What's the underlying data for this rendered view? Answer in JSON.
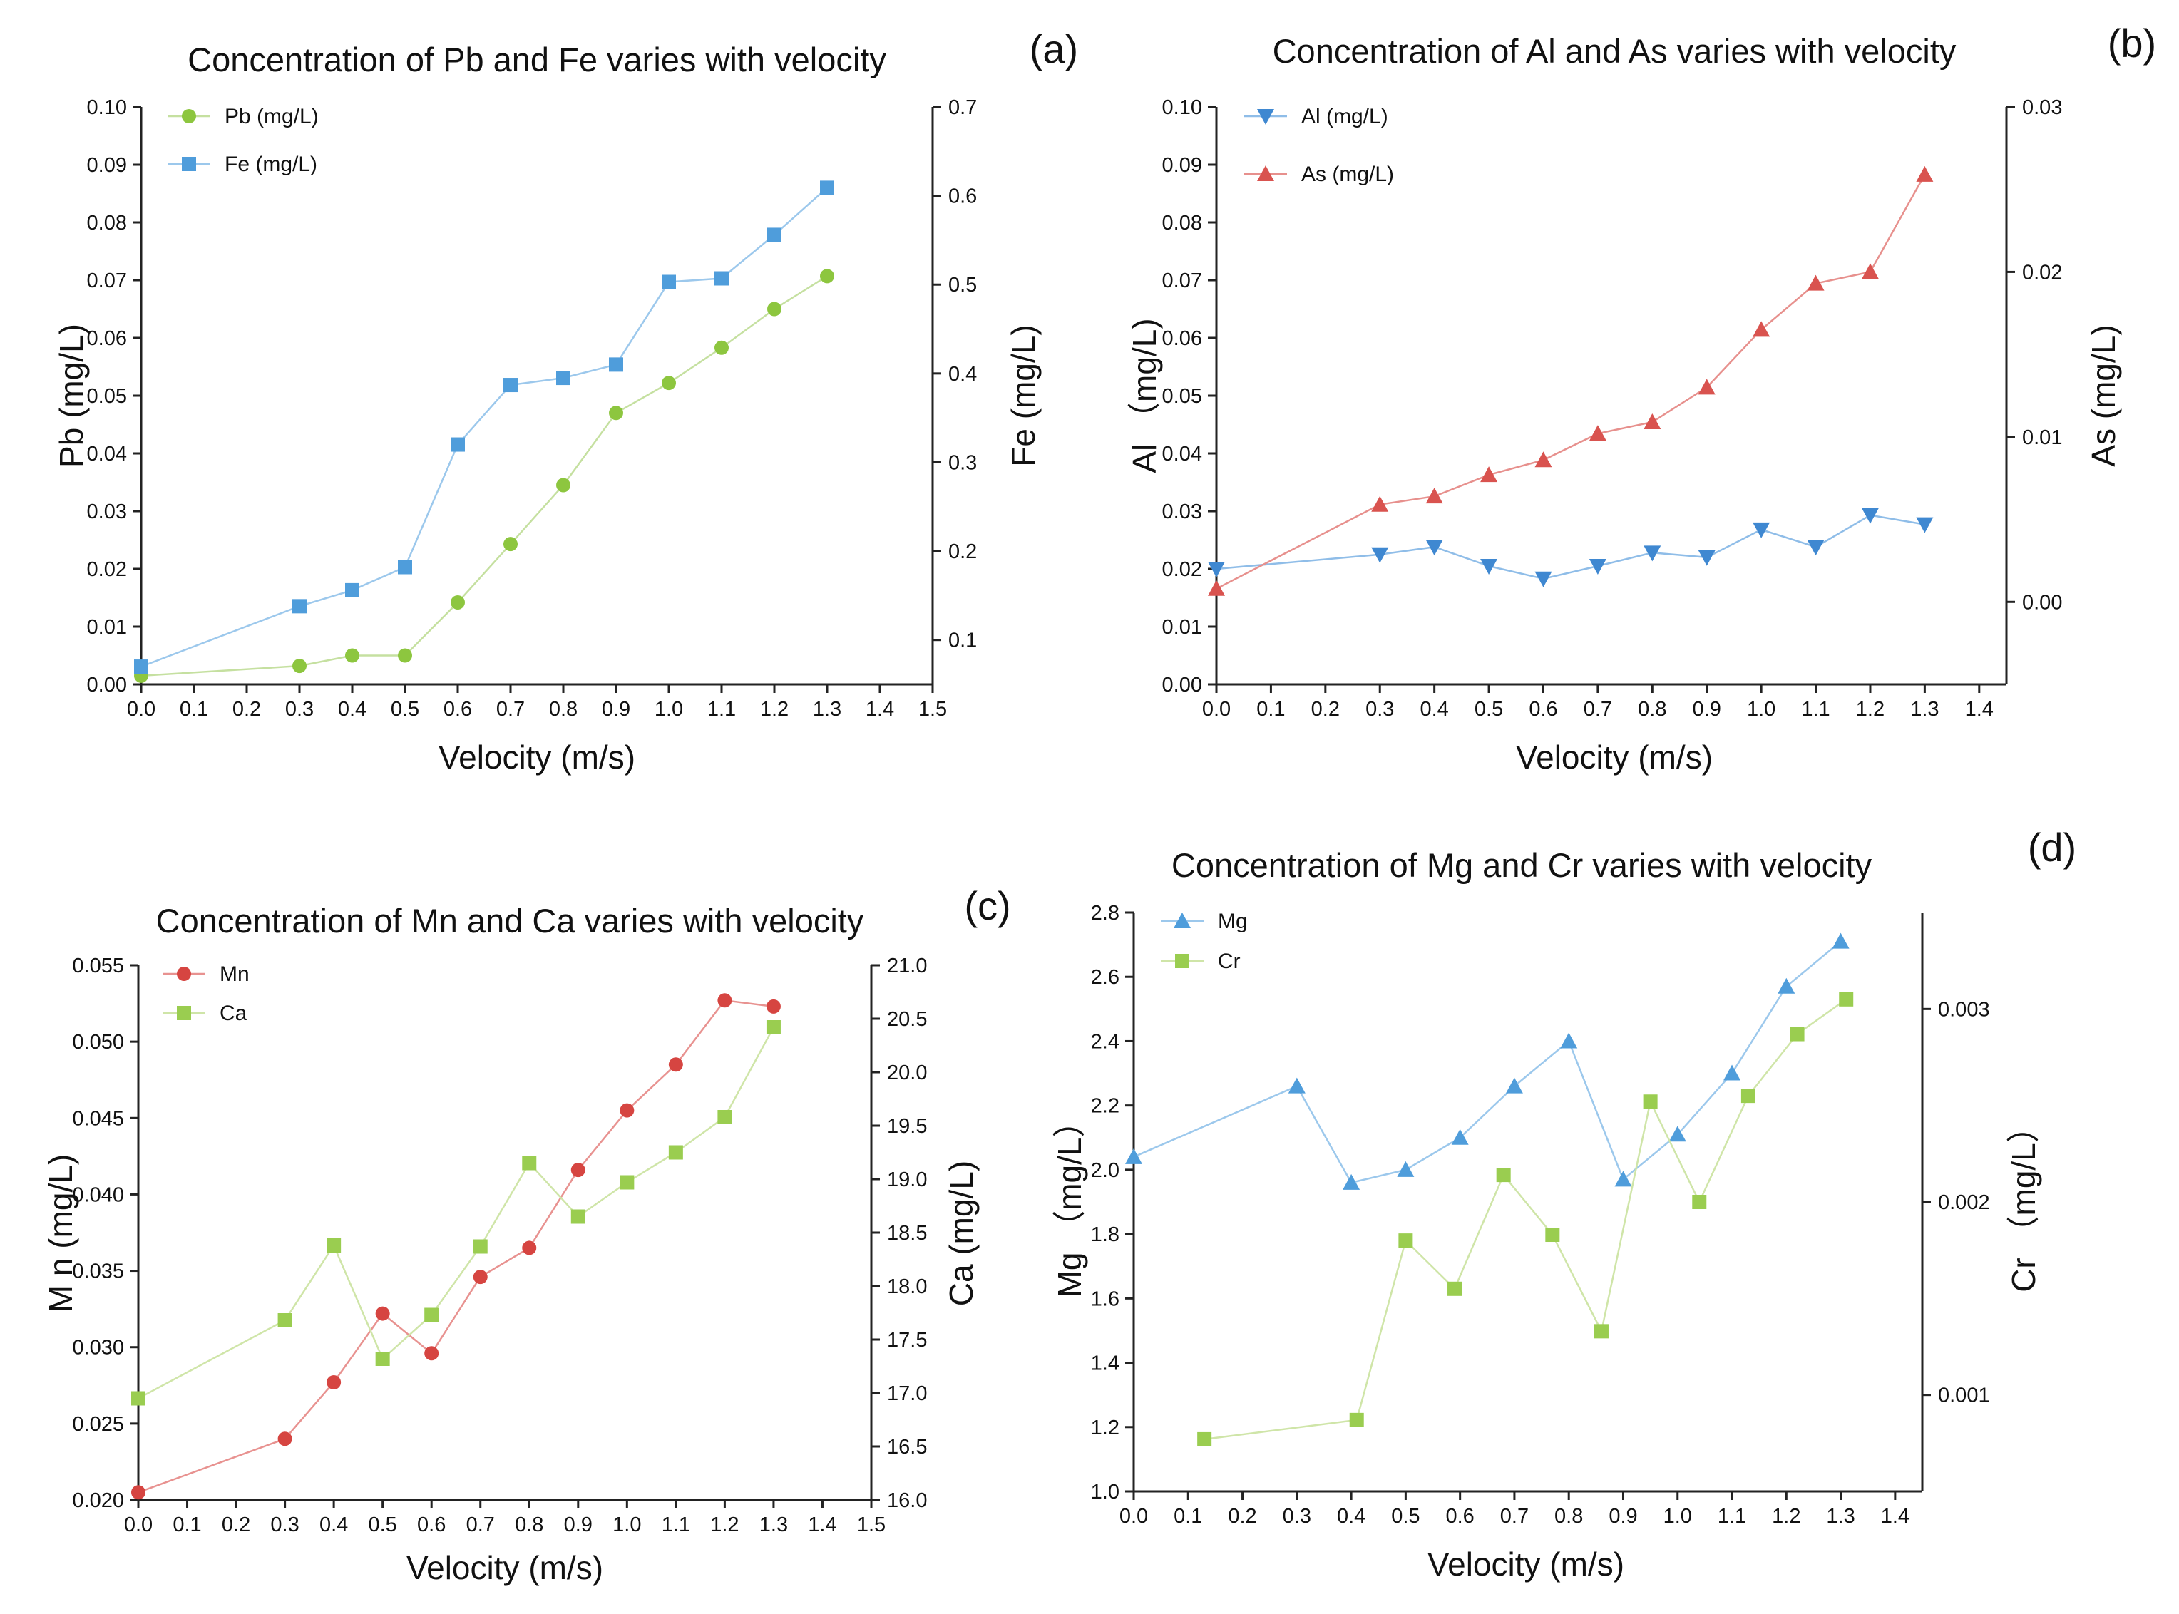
{
  "chart_data": [
    {
      "panel_label": "(a)",
      "type": "line",
      "title": "Concentration of Pb and Fe varies with velocity",
      "xlabel": "Velocity (m/s)",
      "ylabel": "Pb (mg/L)",
      "y2label": "Fe (mg/L)",
      "xlim": [
        0,
        1.5
      ],
      "ylim": [
        0,
        0.1
      ],
      "y2lim": [
        0.05,
        0.7
      ],
      "xticks": [
        "0.0",
        "0.1",
        "0.2",
        "0.3",
        "0.4",
        "0.5",
        "0.6",
        "0.7",
        "0.8",
        "0.9",
        "1.0",
        "1.1",
        "1.2",
        "1.3",
        "1.4",
        "1.5"
      ],
      "yticks": [
        "0.00",
        "0.01",
        "0.02",
        "0.03",
        "0.04",
        "0.05",
        "0.06",
        "0.07",
        "0.08",
        "0.09",
        "0.10"
      ],
      "y2ticks": [
        "0.1",
        "0.2",
        "0.3",
        "0.4",
        "0.5",
        "0.6",
        "0.7"
      ],
      "legend_position": "top-left",
      "series": [
        {
          "name": "Pb (mg/L)",
          "axis": "left",
          "marker": "circle",
          "color": "#8dc63f",
          "line_color": "#c5e0a0",
          "x": [
            0.0,
            0.3,
            0.4,
            0.5,
            0.6,
            0.7,
            0.8,
            0.9,
            1.0,
            1.1,
            1.2,
            1.3
          ],
          "y": [
            0.0015,
            0.0032,
            0.005,
            0.005,
            0.0142,
            0.0243,
            0.0345,
            0.047,
            0.0522,
            0.0583,
            0.065,
            0.0707
          ]
        },
        {
          "name": "Fe (mg/L)",
          "axis": "right",
          "marker": "square",
          "color": "#4f9ddb",
          "line_color": "#9cc8ec",
          "x": [
            0.0,
            0.3,
            0.4,
            0.5,
            0.6,
            0.7,
            0.8,
            0.9,
            1.0,
            1.1,
            1.2,
            1.3
          ],
          "y": [
            0.07,
            0.138,
            0.156,
            0.182,
            0.32,
            0.387,
            0.395,
            0.41,
            0.503,
            0.507,
            0.556,
            0.609
          ]
        }
      ]
    },
    {
      "panel_label": "(b)",
      "type": "line",
      "title": "Concentration of Al and As varies with velocity",
      "xlabel": "Velocity (m/s)",
      "ylabel": "Al （mg/L)",
      "y2label": "As (mg/L)",
      "xlim": [
        0,
        1.45
      ],
      "ylim": [
        0,
        0.1
      ],
      "y2lim": [
        -0.005,
        0.03
      ],
      "xticks": [
        "0.0",
        "0.1",
        "0.2",
        "0.3",
        "0.4",
        "0.5",
        "0.6",
        "0.7",
        "0.8",
        "0.9",
        "1.0",
        "1.1",
        "1.2",
        "1.3",
        "1.4"
      ],
      "yticks": [
        "0.00",
        "0.01",
        "0.02",
        "0.03",
        "0.04",
        "0.05",
        "0.06",
        "0.07",
        "0.08",
        "0.09",
        "0.10"
      ],
      "y2ticks": [
        "0.00",
        "0.01",
        "0.02",
        "0.03"
      ],
      "legend_position": "top-left",
      "series": [
        {
          "name": "Al (mg/L)",
          "axis": "left",
          "marker": "triangle-down",
          "color": "#3f88d1",
          "line_color": "#8fbde8",
          "x": [
            0.0,
            0.3,
            0.4,
            0.5,
            0.6,
            0.7,
            0.8,
            0.9,
            1.0,
            1.1,
            1.2,
            1.3
          ],
          "y": [
            0.02,
            0.0225,
            0.0238,
            0.0205,
            0.0183,
            0.0205,
            0.0228,
            0.022,
            0.0268,
            0.0238,
            0.0293,
            0.0277
          ]
        },
        {
          "name": "As (mg/L)",
          "axis": "right",
          "marker": "triangle-up",
          "color": "#d9534f",
          "line_color": "#e7908d",
          "x": [
            0.0,
            0.3,
            0.4,
            0.5,
            0.6,
            0.7,
            0.8,
            0.9,
            1.0,
            1.1,
            1.2,
            1.3
          ],
          "y": [
            0.0008,
            0.0059,
            0.0064,
            0.0077,
            0.0086,
            0.0102,
            0.0109,
            0.013,
            0.0165,
            0.0193,
            0.02,
            0.0259
          ]
        }
      ]
    },
    {
      "panel_label": "(c)",
      "type": "line",
      "title": "Concentration of Mn and Ca varies with velocity",
      "xlabel": "Velocity (m/s)",
      "ylabel": "M n (mg/L)",
      "y2label": "Ca (mg/L)",
      "xlim": [
        0,
        1.5
      ],
      "ylim": [
        0.02,
        0.055
      ],
      "y2lim": [
        16.0,
        21.0
      ],
      "xticks": [
        "0.0",
        "0.1",
        "0.2",
        "0.3",
        "0.4",
        "0.5",
        "0.6",
        "0.7",
        "0.8",
        "0.9",
        "1.0",
        "1.1",
        "1.2",
        "1.3",
        "1.4",
        "1.5"
      ],
      "yticks": [
        "0.020",
        "0.025",
        "0.030",
        "0.035",
        "0.040",
        "0.045",
        "0.050",
        "0.055"
      ],
      "y2ticks": [
        "16.0",
        "16.5",
        "17.0",
        "17.5",
        "18.0",
        "18.5",
        "19.0",
        "19.5",
        "20.0",
        "20.5",
        "21.0"
      ],
      "legend_position": "top-left",
      "series": [
        {
          "name": "Mn",
          "axis": "left",
          "marker": "circle",
          "color": "#d64541",
          "line_color": "#e89290",
          "x": [
            0.0,
            0.3,
            0.4,
            0.5,
            0.6,
            0.7,
            0.8,
            0.9,
            1.0,
            1.1,
            1.2,
            1.3
          ],
          "y": [
            0.0205,
            0.024,
            0.0277,
            0.0322,
            0.0296,
            0.0346,
            0.0365,
            0.0416,
            0.0455,
            0.0485,
            0.0527,
            0.0523
          ]
        },
        {
          "name": "Ca",
          "axis": "right",
          "marker": "square",
          "color": "#9acd50",
          "line_color": "#cfe5a8",
          "x": [
            0.0,
            0.3,
            0.4,
            0.5,
            0.6,
            0.7,
            0.8,
            0.9,
            1.0,
            1.1,
            1.2,
            1.3
          ],
          "y": [
            16.95,
            17.68,
            18.38,
            17.32,
            17.73,
            18.37,
            19.15,
            18.65,
            18.97,
            19.25,
            19.58,
            20.42
          ]
        }
      ]
    },
    {
      "panel_label": "(d)",
      "type": "line",
      "title": "Concentration of Mg and Cr varies with velocity",
      "xlabel": "Velocity (m/s)",
      "ylabel": "Mg （mg/L）",
      "y2label": "Cr （mg/L）",
      "xlim": [
        0,
        1.45
      ],
      "ylim": [
        1.0,
        2.8
      ],
      "y2lim": [
        0.0005,
        0.0035
      ],
      "xticks": [
        "0.0",
        "0.1",
        "0.2",
        "0.3",
        "0.4",
        "0.5",
        "0.6",
        "0.7",
        "0.8",
        "0.9",
        "1.0",
        "1.1",
        "1.2",
        "1.3",
        "1.4"
      ],
      "yticks": [
        "1.0",
        "1.2",
        "1.4",
        "1.6",
        "1.8",
        "2.0",
        "2.2",
        "2.4",
        "2.6",
        "2.8"
      ],
      "y2ticks_values": [
        0.001,
        0.002,
        0.003
      ],
      "y2ticks": [
        "0.001",
        "0.002",
        "0.003"
      ],
      "legend_position": "top-left",
      "series": [
        {
          "name": "Mg",
          "axis": "left",
          "marker": "triangle-up",
          "color": "#4f9ddb",
          "line_color": "#9cc8ec",
          "x": [
            0.0,
            0.3,
            0.4,
            0.5,
            0.6,
            0.7,
            0.8,
            0.9,
            1.0,
            1.1,
            1.2,
            1.3
          ],
          "y": [
            2.04,
            2.26,
            1.96,
            2.0,
            2.1,
            2.26,
            2.4,
            1.97,
            2.11,
            2.3,
            2.57,
            2.71
          ]
        },
        {
          "name": "Cr",
          "axis": "right",
          "marker": "square",
          "color": "#9acd50",
          "line_color": "#cfe5a8",
          "x": [
            0.13,
            0.41,
            0.5,
            0.59,
            0.68,
            0.77,
            0.86,
            0.95,
            1.04,
            1.13,
            1.22,
            1.31
          ],
          "y": [
            0.00077,
            0.00087,
            0.0018,
            0.00155,
            0.00214,
            0.00183,
            0.00133,
            0.00252,
            0.002,
            0.00255,
            0.00287,
            0.00305
          ]
        }
      ]
    }
  ]
}
